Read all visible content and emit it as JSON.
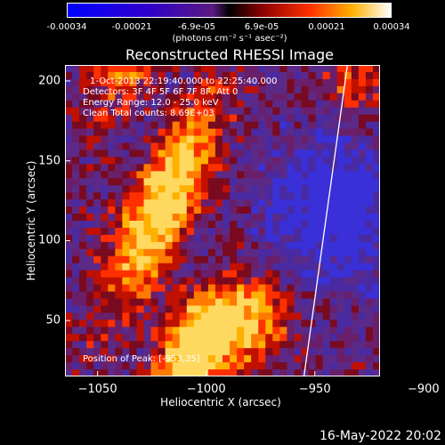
{
  "colorbar": {
    "ticks": [
      "-0.00034",
      "-0.00021",
      "-6.9e-05",
      "6.9e-05",
      "0.00021",
      "0.00034"
    ],
    "units": "(photons cm⁻² s⁻¹ asec⁻²)",
    "range": [
      -0.00034,
      0.00034
    ]
  },
  "chart_data": {
    "type": "heatmap",
    "title": "Reconstructed RHESSI Image",
    "xlabel": "Heliocentric X (arcsec)",
    "ylabel": "Heliocentric Y (arcsec)",
    "xlim": [
      -1065,
      -920
    ],
    "ylim": [
      15,
      210
    ],
    "x_ticks": [
      "−1050",
      "−1000",
      "−950",
      "−900"
    ],
    "x_tick_values": [
      -1050,
      -1000,
      -950,
      -900
    ],
    "y_ticks": [
      "200",
      "150",
      "100",
      "50"
    ],
    "y_tick_values": [
      200,
      150,
      100,
      50
    ],
    "limb_line": [
      [
        -955,
        15
      ],
      [
        -935,
        210
      ]
    ],
    "peak_marker": {
      "x": -953,
      "y": 35
    },
    "annotations": {
      "time_range": "1-Oct-2013 22:19:40.000 to 22:25:40.000",
      "detectors": "Detectors: 3F 4F 5F 6F 7F 8F, Att 0",
      "energy": "Energy Range: 12.0 - 25.0 keV",
      "clean": "Clean     Total counts: 8.69E+03",
      "peak_label": "Position of Peak: [-953,35]"
    }
  },
  "footer": {
    "date": "16-May-2022 20:02"
  }
}
